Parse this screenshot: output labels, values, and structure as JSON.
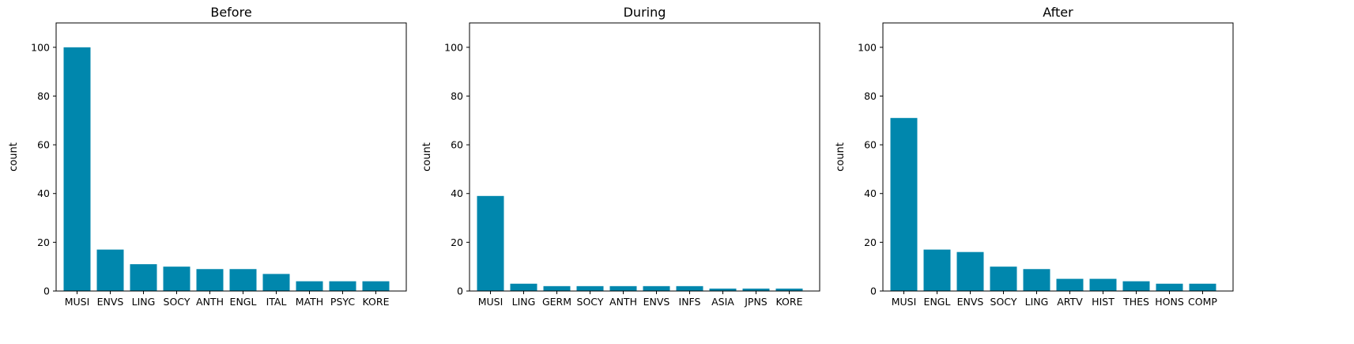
{
  "chart_data": [
    {
      "type": "bar",
      "title": "Before",
      "xlabel": "",
      "ylabel": "count",
      "ylim": [
        0,
        110
      ],
      "yticks": [
        0,
        20,
        40,
        60,
        80,
        100
      ],
      "grid": false,
      "color": "#0087ad",
      "categories": [
        "MUSI",
        "ENVS",
        "LING",
        "SOCY",
        "ANTH",
        "ENGL",
        "ITAL",
        "MATH",
        "PSYC",
        "KORE"
      ],
      "values": [
        100,
        17,
        11,
        10,
        9,
        9,
        7,
        4,
        4,
        4
      ]
    },
    {
      "type": "bar",
      "title": "During",
      "xlabel": "",
      "ylabel": "count",
      "ylim": [
        0,
        110
      ],
      "yticks": [
        0,
        20,
        40,
        60,
        80,
        100
      ],
      "grid": false,
      "color": "#0087ad",
      "categories": [
        "MUSI",
        "LING",
        "GERM",
        "SOCY",
        "ANTH",
        "ENVS",
        "INFS",
        "ASIA",
        "JPNS",
        "KORE"
      ],
      "values": [
        39,
        3,
        2,
        2,
        2,
        2,
        2,
        1,
        1,
        1
      ]
    },
    {
      "type": "bar",
      "title": "After",
      "xlabel": "",
      "ylabel": "count",
      "ylim": [
        0,
        110
      ],
      "yticks": [
        0,
        20,
        40,
        60,
        80,
        100
      ],
      "grid": false,
      "color": "#0087ad",
      "categories": [
        "MUSI",
        "ENGL",
        "ENVS",
        "SOCY",
        "LING",
        "ARTV",
        "HIST",
        "THES",
        "HONS",
        "COMP"
      ],
      "values": [
        71,
        17,
        16,
        10,
        9,
        5,
        5,
        4,
        3,
        3
      ]
    }
  ]
}
